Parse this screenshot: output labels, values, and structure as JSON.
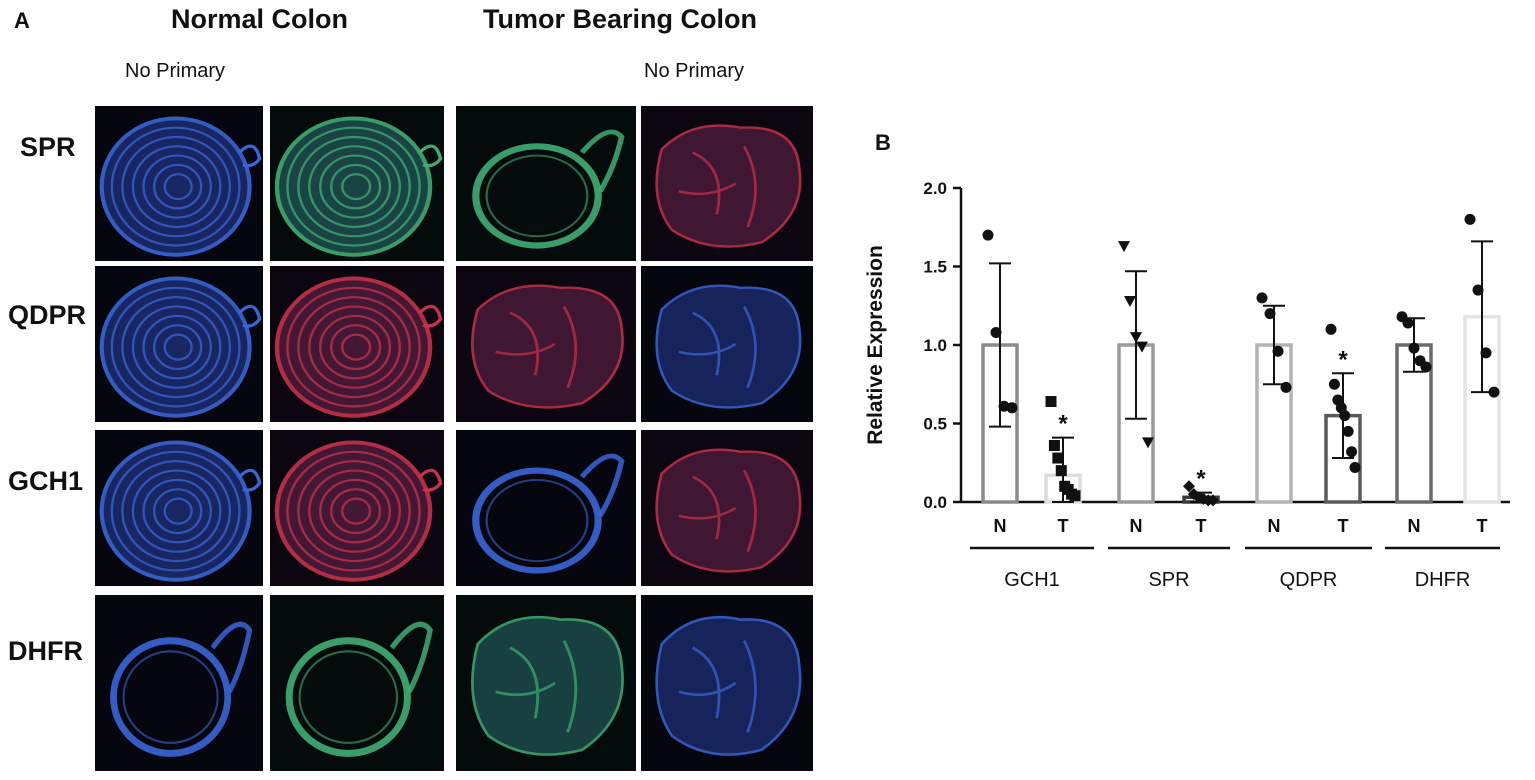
{
  "panel_a": {
    "letter": "A",
    "col_headers": [
      "Normal Colon",
      "Tumor Bearing Colon"
    ],
    "sub_headers": [
      "No Primary",
      "No Primary"
    ],
    "rows": [
      {
        "label": "SPR",
        "tiles": [
          {
            "stain": "blue",
            "shape": "spiral"
          },
          {
            "stain": "green",
            "shape": "spiral"
          },
          {
            "stain": "green",
            "shape": "ring"
          },
          {
            "stain": "red",
            "shape": "blob"
          }
        ]
      },
      {
        "label": "QDPR",
        "tiles": [
          {
            "stain": "blue",
            "shape": "spiral"
          },
          {
            "stain": "red",
            "shape": "spiral"
          },
          {
            "stain": "red",
            "shape": "blob"
          },
          {
            "stain": "blue",
            "shape": "blob"
          }
        ]
      },
      {
        "label": "GCH1",
        "tiles": [
          {
            "stain": "blue",
            "shape": "spiral"
          },
          {
            "stain": "red",
            "shape": "spiral"
          },
          {
            "stain": "blue",
            "shape": "ring"
          },
          {
            "stain": "red",
            "shape": "blob"
          }
        ]
      },
      {
        "label": "DHFR",
        "tiles": [
          {
            "stain": "blue",
            "shape": "ring"
          },
          {
            "stain": "green",
            "shape": "ring"
          },
          {
            "stain": "green",
            "shape": "blob"
          },
          {
            "stain": "blue",
            "shape": "blob"
          }
        ]
      }
    ]
  },
  "panel_b": {
    "letter": "B",
    "chart_data": {
      "type": "bar",
      "ylabel": "Relative Expression",
      "ylim": [
        0,
        2.0
      ],
      "yticks": [
        "0.0",
        "0.5",
        "1.0",
        "1.5",
        "2.0"
      ],
      "groups": [
        "GCH1",
        "SPR",
        "QDPR",
        "DHFR"
      ],
      "bars": [
        {
          "group": "GCH1",
          "label": "N",
          "mean": 1.0,
          "sd": 0.52,
          "color": "#8a8a8a",
          "marker": "circle",
          "points": [
            1.7,
            1.08,
            0.61,
            0.6
          ],
          "sig": ""
        },
        {
          "group": "GCH1",
          "label": "T",
          "mean": 0.17,
          "sd": 0.24,
          "color": "#dcdcdc",
          "marker": "square",
          "points": [
            0.64,
            0.36,
            0.28,
            0.2,
            0.1,
            0.08,
            0.05,
            0.04
          ],
          "sig": "*"
        },
        {
          "group": "SPR",
          "label": "N",
          "mean": 1.0,
          "sd": 0.47,
          "color": "#9a9a9a",
          "marker": "triangle-down",
          "points": [
            1.63,
            1.28,
            1.05,
            0.99,
            0.38
          ],
          "sig": ""
        },
        {
          "group": "SPR",
          "label": "T",
          "mean": 0.03,
          "sd": 0.03,
          "color": "#3a3a3a",
          "marker": "diamond",
          "points": [
            0.1,
            0.05,
            0.03,
            0.02,
            0.01,
            0.01
          ],
          "sig": "*"
        },
        {
          "group": "QDPR",
          "label": "N",
          "mean": 1.0,
          "sd": 0.25,
          "color": "#b4b4b4",
          "marker": "circle",
          "points": [
            1.3,
            1.2,
            0.96,
            0.73
          ],
          "sig": ""
        },
        {
          "group": "QDPR",
          "label": "T",
          "mean": 0.55,
          "sd": 0.27,
          "color": "#5a5a5a",
          "marker": "circle",
          "points": [
            1.1,
            0.75,
            0.65,
            0.6,
            0.55,
            0.45,
            0.32,
            0.22
          ],
          "sig": "*"
        },
        {
          "group": "DHFR",
          "label": "N",
          "mean": 1.0,
          "sd": 0.17,
          "color": "#6a6a6a",
          "marker": "circle",
          "points": [
            1.18,
            1.14,
            0.98,
            0.9,
            0.86
          ],
          "sig": ""
        },
        {
          "group": "DHFR",
          "label": "T",
          "mean": 1.18,
          "sd": 0.48,
          "color": "#e4e4e4",
          "marker": "circle",
          "points": [
            1.8,
            1.35,
            0.95,
            0.7
          ],
          "sig": ""
        }
      ]
    }
  }
}
